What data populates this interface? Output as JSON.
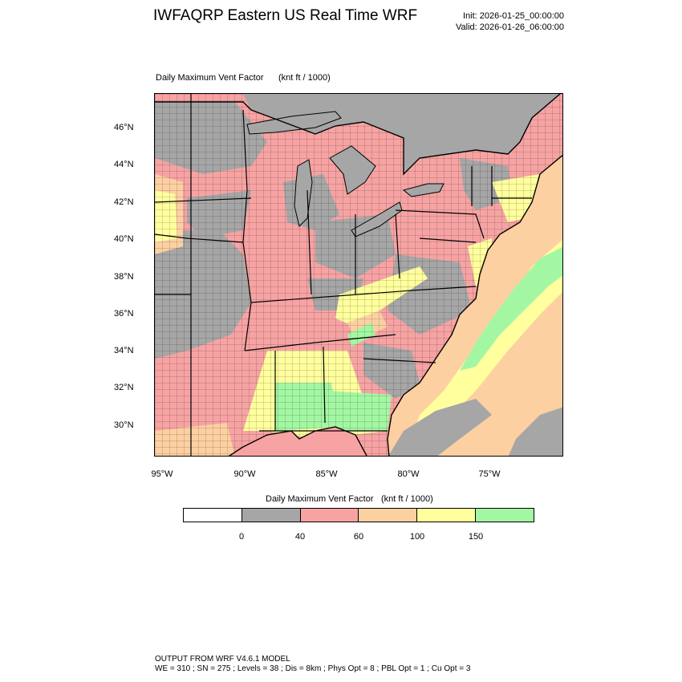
{
  "header": {
    "title": "IWFAQRP Eastern US Real Time WRF",
    "init": "Init: 2026-01-25_00:00:00",
    "valid": "Valid: 2026-01-26_06:00:00"
  },
  "plot": {
    "title": "Daily Maximum Vent Factor",
    "units": "(knt ft / 1000)"
  },
  "axes": {
    "lat_labels": [
      "46°N",
      "44°N",
      "42°N",
      "40°N",
      "38°N",
      "36°N",
      "34°N",
      "32°N",
      "30°N"
    ],
    "lon_labels": [
      "95°W",
      "90°W",
      "85°W",
      "80°W",
      "75°W"
    ]
  },
  "colorbar": {
    "title": "Daily Maximum Vent Factor",
    "units": "(knt ft / 1000)",
    "colors": [
      "#ffffff",
      "#a6a6a6",
      "#f7a3a3",
      "#fdd0a2",
      "#ffff9e",
      "#a3f7a3"
    ],
    "ticks": [
      "0",
      "40",
      "60",
      "100",
      "150"
    ]
  },
  "map_colors": {
    "ocean_canada": "#a6a6a6",
    "lakes": "#a6a6a6",
    "county_lines": "#000000"
  },
  "footer": {
    "line1": "OUTPUT FROM WRF V4.6.1 MODEL",
    "line2": "WE = 310 ; SN = 275 ; Levels = 38 ; Dis = 8km ; Phys Opt = 8 ; PBL Opt = 1 ; Cu Opt = 3"
  }
}
